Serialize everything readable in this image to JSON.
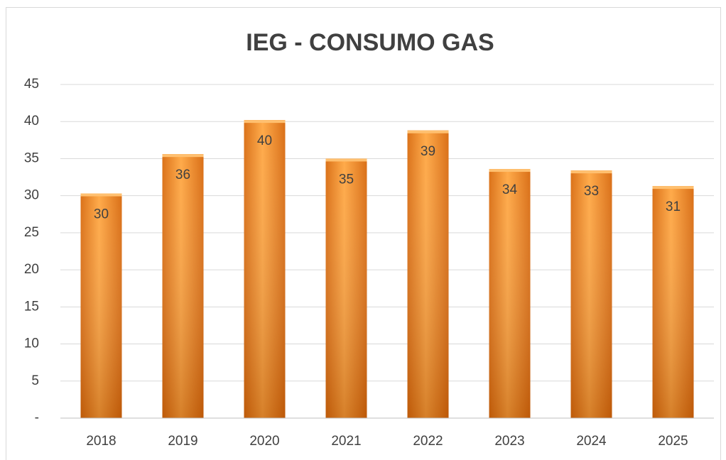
{
  "chart_data": {
    "type": "bar",
    "title": "IEG - CONSUMO GAS",
    "categories": [
      "2018",
      "2019",
      "2020",
      "2021",
      "2022",
      "2023",
      "2024",
      "2025"
    ],
    "values": [
      30.3,
      35.6,
      40.2,
      35.0,
      38.8,
      33.6,
      33.4,
      31.3
    ],
    "value_labels": [
      "30",
      "36",
      "40",
      "35",
      "39",
      "34",
      "33",
      "31"
    ],
    "color": "#f28a1e",
    "ylim": [
      0,
      45
    ],
    "yticks": [
      {
        "value": 0,
        "label": "-"
      },
      5,
      10,
      15,
      20,
      25,
      30,
      35,
      40,
      45
    ],
    "grid": true
  }
}
